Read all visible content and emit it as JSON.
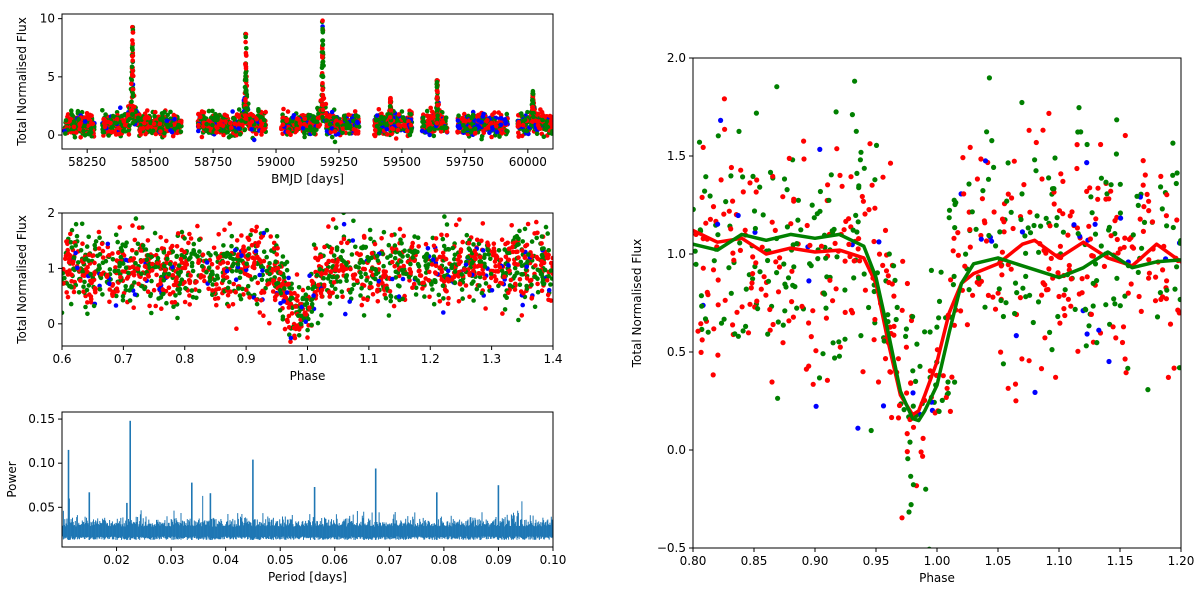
{
  "colors": {
    "red": "#ff0000",
    "green": "#008000",
    "blue": "#0000ff",
    "periodogram": "#1f77b4",
    "frame": "#000000"
  },
  "chart_data": [
    {
      "id": "lightcurve",
      "type": "scatter",
      "xlabel": "BMJD [days]",
      "ylabel": "Total Normalised Flux",
      "xlim": [
        58150,
        60100
      ],
      "ylim": [
        -1.2,
        10.4
      ],
      "xticks": [
        58250,
        58500,
        58750,
        59000,
        59250,
        59500,
        59750,
        60000
      ],
      "yticks": [
        0,
        5,
        10
      ],
      "seasons": [
        {
          "start": 58160,
          "end": 58280,
          "flare": null,
          "blue": 0.05
        },
        {
          "start": 58310,
          "end": 58625,
          "flare": {
            "x": 58430,
            "peak": 9.6
          },
          "blue": 0.06
        },
        {
          "start": 58690,
          "end": 58960,
          "flare": {
            "x": 58880,
            "peak": 8.8
          },
          "blue": 0.06
        },
        {
          "start": 59020,
          "end": 59330,
          "flare": {
            "x": 59185,
            "peak": 9.9
          },
          "blue": 0.15
        },
        {
          "start": 59390,
          "end": 59540,
          "flare": {
            "x": 59455,
            "peak": 3.2
          },
          "blue": 0.18
        },
        {
          "start": 59580,
          "end": 59680,
          "flare": {
            "x": 59640,
            "peak": 4.8
          },
          "blue": 0.1
        },
        {
          "start": 59720,
          "end": 59920,
          "flare": null,
          "blue": 0.2
        },
        {
          "start": 59960,
          "end": 60100,
          "flare": {
            "x": 60020,
            "peak": 3.8
          },
          "blue": 0.15
        }
      ]
    },
    {
      "id": "phase-folded-wide",
      "type": "scatter",
      "xlabel": "Phase",
      "ylabel": "Total Normalised Flux",
      "xlim": [
        0.6,
        1.4
      ],
      "ylim": [
        -0.4,
        2.0
      ],
      "xticks": [
        0.6,
        0.7,
        0.8,
        0.9,
        1.0,
        1.1,
        1.2,
        1.3,
        1.4
      ],
      "xticklabels": [
        "0.6",
        "0.7",
        "0.8",
        "0.9",
        "1.0",
        "1.1",
        "1.2",
        "1.3",
        "1.4"
      ],
      "yticks": [
        0,
        1,
        2
      ],
      "eclipse_center": 0.985,
      "eclipse_depth": 0.85
    },
    {
      "id": "periodogram",
      "type": "line",
      "xlabel": "Period [days]",
      "ylabel": "Power",
      "xlim": [
        0.01,
        0.1
      ],
      "ylim": [
        0.005,
        0.158
      ],
      "xticks": [
        0.02,
        0.03,
        0.04,
        0.05,
        0.06,
        0.07,
        0.08,
        0.09,
        0.1
      ],
      "xticklabels": [
        "0.02",
        "0.03",
        "0.04",
        "0.05",
        "0.06",
        "0.07",
        "0.08",
        "0.09",
        "0.10"
      ],
      "yticks": [
        0.05,
        0.1,
        0.15
      ],
      "yticklabels": [
        "0.05",
        "0.10",
        "0.15"
      ],
      "noise_floor": 0.013,
      "noise_level": 0.028,
      "peaks": [
        {
          "period": 0.0112,
          "power": 0.115
        },
        {
          "period": 0.0113,
          "power": 0.06
        },
        {
          "period": 0.015,
          "power": 0.067
        },
        {
          "period": 0.0225,
          "power": 0.148
        },
        {
          "period": 0.0219,
          "power": 0.055
        },
        {
          "period": 0.0338,
          "power": 0.078
        },
        {
          "period": 0.0372,
          "power": 0.066
        },
        {
          "period": 0.045,
          "power": 0.104
        },
        {
          "period": 0.0563,
          "power": 0.073
        },
        {
          "period": 0.0675,
          "power": 0.094
        },
        {
          "period": 0.0787,
          "power": 0.067
        },
        {
          "period": 0.09,
          "power": 0.075
        }
      ]
    },
    {
      "id": "phase-folded-zoom",
      "type": "scatter",
      "xlabel": "Phase",
      "ylabel": "Total Normalised Flux",
      "xlim": [
        0.8,
        1.2
      ],
      "ylim": [
        -0.5,
        2.0
      ],
      "xticks": [
        0.8,
        0.85,
        0.9,
        0.95,
        1.0,
        1.05,
        1.1,
        1.15,
        1.2
      ],
      "xticklabels": [
        "0.80",
        "0.85",
        "0.90",
        "0.95",
        "1.00",
        "1.05",
        "1.10",
        "1.15",
        "1.20"
      ],
      "yticks": [
        -0.5,
        0.0,
        0.5,
        1.0,
        1.5,
        2.0
      ],
      "yticklabels": [
        "−0.5",
        "0.0",
        "0.5",
        "1.0",
        "1.5",
        "2.0"
      ],
      "eclipse_center": 0.985,
      "eclipse_depth": 0.85,
      "smooth_series": [
        {
          "name": "red",
          "x": [
            0.8,
            0.82,
            0.84,
            0.86,
            0.88,
            0.9,
            0.92,
            0.94,
            0.95,
            0.96,
            0.97,
            0.98,
            0.985,
            0.99,
            1.0,
            1.01,
            1.02,
            1.03,
            1.05,
            1.07,
            1.08,
            1.1,
            1.12,
            1.14,
            1.16,
            1.18,
            1.2
          ],
          "y": [
            1.12,
            1.06,
            1.08,
            1.0,
            1.03,
            1.01,
            1.02,
            0.98,
            0.85,
            0.55,
            0.28,
            0.18,
            0.2,
            0.28,
            0.45,
            0.7,
            0.85,
            0.9,
            0.95,
            1.05,
            1.07,
            0.98,
            1.06,
            0.98,
            0.94,
            1.05,
            0.96
          ]
        },
        {
          "name": "green",
          "x": [
            0.8,
            0.82,
            0.84,
            0.86,
            0.88,
            0.9,
            0.92,
            0.94,
            0.95,
            0.96,
            0.97,
            0.98,
            0.985,
            0.99,
            1.0,
            1.01,
            1.02,
            1.03,
            1.05,
            1.07,
            1.08,
            1.1,
            1.12,
            1.14,
            1.16,
            1.18,
            1.2
          ],
          "y": [
            1.05,
            1.02,
            1.1,
            1.07,
            1.1,
            1.08,
            1.1,
            1.04,
            0.88,
            0.6,
            0.3,
            0.16,
            0.15,
            0.2,
            0.33,
            0.6,
            0.85,
            0.95,
            0.98,
            0.94,
            0.92,
            0.88,
            0.93,
            1.01,
            0.93,
            0.96,
            0.97
          ]
        }
      ]
    }
  ]
}
